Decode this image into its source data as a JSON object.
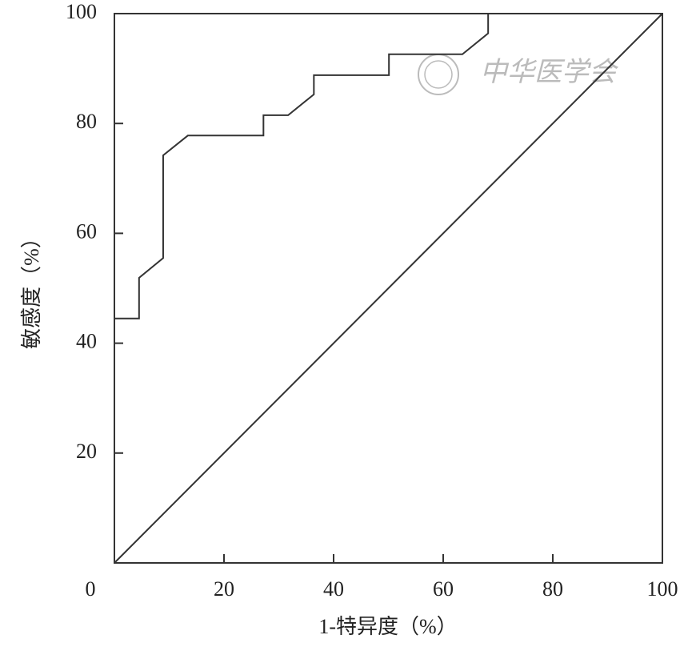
{
  "chart_data": {
    "type": "line",
    "xlabel": "1-特异度（%）",
    "ylabel": "敏感度（%）",
    "watermark": "中华医学会",
    "xlim": [
      0,
      100
    ],
    "ylim": [
      0,
      100
    ],
    "xticks": [
      0,
      20,
      40,
      60,
      80,
      100
    ],
    "yticks": [
      20,
      40,
      60,
      80,
      100
    ],
    "grid": false,
    "series": [
      {
        "color": "#333333",
        "x": [
          0,
          4.5,
          4.5,
          8.9,
          8.9,
          13.4,
          27.2,
          27.2,
          31.7,
          36.4,
          36.4,
          50.1,
          50.1,
          63.5,
          68.2,
          68.2,
          100
        ],
        "values": [
          44.5,
          44.5,
          51.9,
          55.5,
          74.2,
          77.8,
          77.8,
          81.5,
          81.5,
          85.3,
          88.8,
          88.8,
          92.6,
          92.6,
          96.4,
          100,
          100
        ]
      },
      {
        "color": "#333333",
        "x": [
          0,
          100
        ],
        "values": [
          0,
          100
        ]
      }
    ]
  }
}
